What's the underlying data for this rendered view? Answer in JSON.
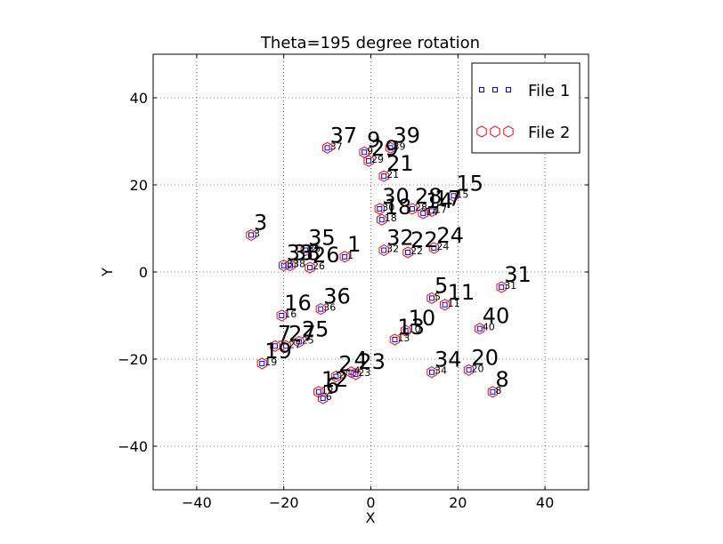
{
  "chart_data": {
    "type": "scatter",
    "title": "Theta=195 degree rotation",
    "xlabel": "X",
    "ylabel": "Y",
    "xlim": [
      -50,
      50
    ],
    "ylim": [
      -50,
      50
    ],
    "xticks": [
      -40,
      -20,
      0,
      20,
      40
    ],
    "yticks": [
      -40,
      -20,
      0,
      20,
      40
    ],
    "x_tick_labels": [
      "−40",
      "−20",
      "0",
      "20",
      "40"
    ],
    "y_tick_labels": [
      "−40",
      "−20",
      "0",
      "20",
      "40"
    ],
    "grid": true,
    "legend_position": "top-right",
    "series": [
      {
        "name": "File 1",
        "marker": "square",
        "color": "#0000ff",
        "label_size": "small",
        "points": [
          {
            "label": "1",
            "x": -6,
            "y": 3.5
          },
          {
            "label": "2",
            "x": -8,
            "y": -24
          },
          {
            "label": "3",
            "x": -27.5,
            "y": 8.5
          },
          {
            "label": "4",
            "x": -4.5,
            "y": -23
          },
          {
            "label": "5",
            "x": 14,
            "y": -6
          },
          {
            "label": "6",
            "x": -11,
            "y": -29
          },
          {
            "label": "7",
            "x": -22,
            "y": -17
          },
          {
            "label": "8",
            "x": 28,
            "y": -27.5
          },
          {
            "label": "9",
            "x": -1.5,
            "y": 27.5
          },
          {
            "label": "10",
            "x": 8,
            "y": -13.5
          },
          {
            "label": "11",
            "x": 17,
            "y": -7.5
          },
          {
            "label": "12",
            "x": -12,
            "y": -27.5
          },
          {
            "label": "13",
            "x": 5.5,
            "y": -15.5
          },
          {
            "label": "14",
            "x": 12,
            "y": 13.5
          },
          {
            "label": "15",
            "x": 19,
            "y": 17.5
          },
          {
            "label": "16",
            "x": -20.5,
            "y": -10
          },
          {
            "label": "17",
            "x": 14,
            "y": 14
          },
          {
            "label": "18",
            "x": 2.5,
            "y": 12
          },
          {
            "label": "19",
            "x": -25,
            "y": -21
          },
          {
            "label": "20",
            "x": 22.5,
            "y": -22.5
          },
          {
            "label": "21",
            "x": 3,
            "y": 22
          },
          {
            "label": "22",
            "x": 8.5,
            "y": 4.5
          },
          {
            "label": "23",
            "x": -3.5,
            "y": -23.5
          },
          {
            "label": "24",
            "x": 14.5,
            "y": 5.5
          },
          {
            "label": "25",
            "x": -16.5,
            "y": -16
          },
          {
            "label": "26",
            "x": -14,
            "y": 1
          },
          {
            "label": "27",
            "x": -19.5,
            "y": -17
          },
          {
            "label": "28",
            "x": 9.5,
            "y": 14.5
          },
          {
            "label": "29",
            "x": -0.5,
            "y": 25.5
          },
          {
            "label": "30",
            "x": 2,
            "y": 14.5
          },
          {
            "label": "31",
            "x": 30,
            "y": -3.5
          },
          {
            "label": "32",
            "x": 3,
            "y": 5
          },
          {
            "label": "33",
            "x": -20,
            "y": 1.5
          },
          {
            "label": "34",
            "x": 14,
            "y": -23
          },
          {
            "label": "35",
            "x": -15,
            "y": 5
          },
          {
            "label": "36",
            "x": -11.5,
            "y": -8.5
          },
          {
            "label": "37",
            "x": -10,
            "y": 28.5
          },
          {
            "label": "38",
            "x": -18.5,
            "y": 1.5
          },
          {
            "label": "39",
            "x": 4.5,
            "y": 28.5
          },
          {
            "label": "40",
            "x": 25,
            "y": -13
          }
        ]
      },
      {
        "name": "File 2",
        "marker": "hexagon",
        "color": "#ff0000",
        "label_size": "large",
        "points": [
          {
            "label": "1",
            "x": -6,
            "y": 3.5
          },
          {
            "label": "2",
            "x": -8,
            "y": -24
          },
          {
            "label": "3",
            "x": -27.5,
            "y": 8.5
          },
          {
            "label": "4",
            "x": -4.5,
            "y": -23
          },
          {
            "label": "5",
            "x": 14,
            "y": -6
          },
          {
            "label": "6",
            "x": -11,
            "y": -29
          },
          {
            "label": "7",
            "x": -22,
            "y": -17
          },
          {
            "label": "8",
            "x": 28,
            "y": -27.5
          },
          {
            "label": "9",
            "x": -1.5,
            "y": 27.5
          },
          {
            "label": "10",
            "x": 8,
            "y": -13.5
          },
          {
            "label": "11",
            "x": 17,
            "y": -7.5
          },
          {
            "label": "12",
            "x": -12,
            "y": -27.5
          },
          {
            "label": "13",
            "x": 5.5,
            "y": -15.5
          },
          {
            "label": "14",
            "x": 12,
            "y": 13.5
          },
          {
            "label": "15",
            "x": 19,
            "y": 17.5
          },
          {
            "label": "16",
            "x": -20.5,
            "y": -10
          },
          {
            "label": "17",
            "x": 14,
            "y": 14
          },
          {
            "label": "18",
            "x": 2.5,
            "y": 12
          },
          {
            "label": "19",
            "x": -25,
            "y": -21
          },
          {
            "label": "20",
            "x": 22.5,
            "y": -22.5
          },
          {
            "label": "21",
            "x": 3,
            "y": 22
          },
          {
            "label": "22",
            "x": 8.5,
            "y": 4.5
          },
          {
            "label": "23",
            "x": -3.5,
            "y": -23.5
          },
          {
            "label": "24",
            "x": 14.5,
            "y": 5.5
          },
          {
            "label": "25",
            "x": -16.5,
            "y": -16
          },
          {
            "label": "26",
            "x": -14,
            "y": 1
          },
          {
            "label": "27",
            "x": -19.5,
            "y": -17
          },
          {
            "label": "28",
            "x": 9.5,
            "y": 14.5
          },
          {
            "label": "29",
            "x": -0.5,
            "y": 25.5
          },
          {
            "label": "30",
            "x": 2,
            "y": 14.5
          },
          {
            "label": "31",
            "x": 30,
            "y": -3.5
          },
          {
            "label": "32",
            "x": 3,
            "y": 5
          },
          {
            "label": "33",
            "x": -20,
            "y": 1.5
          },
          {
            "label": "34",
            "x": 14,
            "y": -23
          },
          {
            "label": "35",
            "x": -15,
            "y": 5
          },
          {
            "label": "36",
            "x": -11.5,
            "y": -8.5
          },
          {
            "label": "37",
            "x": -10,
            "y": 28.5
          },
          {
            "label": "38",
            "x": -18.5,
            "y": 1.5
          },
          {
            "label": "39",
            "x": 4.5,
            "y": 28.5
          },
          {
            "label": "40",
            "x": 25,
            "y": -13
          }
        ]
      }
    ]
  }
}
